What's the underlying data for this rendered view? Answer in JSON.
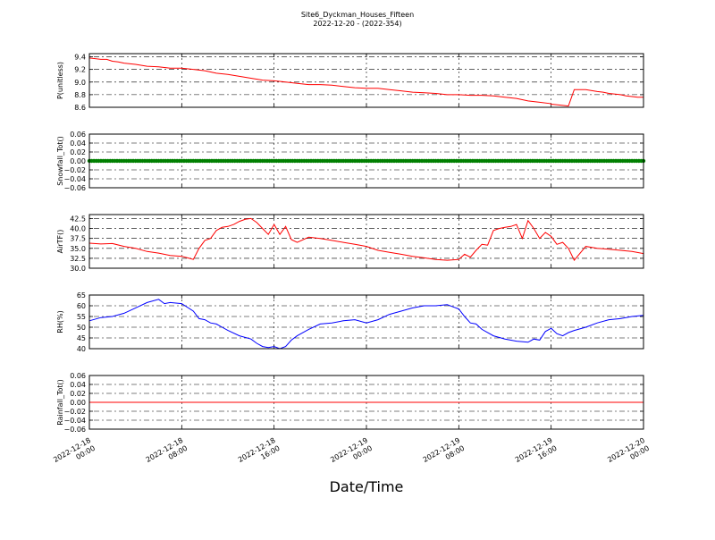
{
  "title": "Site6_Dyckman_Houses_Fifteen",
  "subtitle": "2022-12-20 - (2022-354)",
  "xlabel": "Date/Time",
  "x_ticks": [
    "2022-12-18 00:00",
    "2022-12-18 08:00",
    "2022-12-18 16:00",
    "2022-12-19 00:00",
    "2022-12-19 08:00",
    "2022-12-19 16:00",
    "2022-12-20 00:00"
  ],
  "x_tick_lines": [
    [
      "2022-12-18",
      "00:00"
    ],
    [
      "2022-12-18",
      "08:00"
    ],
    [
      "2022-12-18",
      "16:00"
    ],
    [
      "2022-12-19",
      "00:00"
    ],
    [
      "2022-12-19",
      "08:00"
    ],
    [
      "2022-12-19",
      "16:00"
    ],
    [
      "2022-12-20",
      "00:00"
    ]
  ],
  "colors": {
    "pressure": "#ff0000",
    "snowfall": "#007f00",
    "airtf": "#ff0000",
    "rh": "#0000ff",
    "rainfall": "#ff0000"
  },
  "chart_data": [
    {
      "type": "line",
      "ylabel": "P(unitless)",
      "yticks": [
        "9.4",
        "9.2",
        "9.0",
        "8.8",
        "8.6"
      ],
      "ylim": [
        8.6,
        9.45
      ],
      "xlim": [
        0,
        48
      ],
      "grid": true,
      "series": [
        {
          "color": "#ff0000",
          "x": [
            0,
            0.5,
            1,
            1.5,
            2,
            2.5,
            3,
            4,
            5,
            6,
            7,
            8,
            9,
            10,
            11,
            12,
            13,
            14,
            15,
            16,
            17,
            18,
            19,
            20,
            21,
            22,
            23,
            24,
            25,
            26,
            27,
            28,
            29,
            30,
            31,
            32,
            33,
            34,
            35,
            36,
            37,
            38,
            39,
            39.9,
            40,
            41,
            41.5,
            42,
            43,
            44,
            44.5,
            45,
            46,
            46.5,
            47,
            47.5,
            48
          ],
          "values": [
            9.38,
            9.37,
            9.36,
            9.36,
            9.33,
            9.32,
            9.3,
            9.28,
            9.25,
            9.24,
            9.22,
            9.22,
            9.2,
            9.18,
            9.14,
            9.12,
            9.09,
            9.06,
            9.03,
            9.02,
            9.0,
            8.98,
            8.96,
            8.96,
            8.95,
            8.93,
            8.91,
            8.9,
            8.9,
            8.88,
            8.86,
            8.84,
            8.83,
            8.82,
            8.8,
            8.8,
            8.79,
            8.79,
            8.78,
            8.76,
            8.74,
            8.7,
            8.68,
            8.66,
            8.65,
            8.63,
            8.62,
            8.88,
            8.88,
            8.85,
            8.84,
            8.82,
            8.8,
            8.78,
            8.77,
            8.76,
            8.76
          ]
        }
      ]
    },
    {
      "type": "scatter",
      "ylabel": "Snowfall_Tot()",
      "yticks": [
        "0.06",
        "0.04",
        "0.02",
        "0.00",
        "−0.02",
        "−0.04",
        "−0.06"
      ],
      "ylim": [
        -0.06,
        0.06
      ],
      "xlim": [
        0,
        48
      ],
      "grid": true,
      "series": [
        {
          "color": "#007f00",
          "x_range": [
            0,
            48
          ],
          "constant": 0.0
        }
      ]
    },
    {
      "type": "line",
      "ylabel": "AirTF()",
      "yticks": [
        "42.5",
        "40.0",
        "37.5",
        "35.0",
        "32.5",
        "30.0"
      ],
      "ylim": [
        30.0,
        43.5
      ],
      "xlim": [
        0,
        48
      ],
      "grid": true,
      "series": [
        {
          "color": "#ff0000",
          "x": [
            0,
            1,
            2,
            3,
            4,
            5,
            6,
            7,
            8,
            8.5,
            9,
            9.5,
            10,
            10.5,
            11,
            11.5,
            12,
            12.5,
            13,
            13.5,
            14,
            14.5,
            15,
            15.5,
            16,
            16.5,
            17,
            17.5,
            18,
            19,
            20,
            21,
            22,
            23,
            24,
            25,
            26,
            27,
            28,
            29,
            30,
            31,
            32,
            32.5,
            33,
            33.5,
            34,
            34.5,
            35,
            35.5,
            36,
            36.5,
            37,
            37.5,
            38,
            38.5,
            39,
            39.5,
            40,
            40.5,
            41,
            41.5,
            42,
            43,
            44,
            45,
            46,
            47,
            48
          ],
          "values": [
            36.3,
            36.1,
            36.2,
            35.5,
            35.0,
            34.2,
            33.8,
            33.2,
            33.0,
            32.6,
            32.2,
            35.0,
            37.0,
            37.5,
            39.5,
            40.3,
            40.5,
            41.0,
            41.8,
            42.3,
            42.5,
            41.5,
            40.0,
            38.5,
            41.0,
            38.5,
            40.5,
            37.2,
            36.5,
            37.8,
            37.5,
            37.0,
            36.5,
            36.0,
            35.5,
            34.5,
            34.0,
            33.5,
            33.0,
            32.6,
            32.2,
            32.0,
            32.2,
            33.5,
            32.8,
            34.5,
            36.0,
            35.8,
            39.5,
            40.0,
            40.3,
            40.5,
            41.0,
            37.5,
            42.0,
            40.0,
            37.5,
            39.0,
            38.0,
            36.0,
            36.5,
            35.0,
            32.0,
            35.5,
            35.0,
            34.8,
            34.5,
            34.2,
            33.7
          ]
        }
      ]
    },
    {
      "type": "line",
      "ylabel": "RH(%)",
      "yticks": [
        "65",
        "60",
        "55",
        "50",
        "45",
        "40"
      ],
      "ylim": [
        40,
        65
      ],
      "xlim": [
        0,
        48
      ],
      "grid": true,
      "series": [
        {
          "color": "#0000ff",
          "x": [
            0,
            1,
            2,
            3,
            4,
            5,
            6,
            6.5,
            7,
            8,
            9,
            9.5,
            10,
            10.5,
            11,
            11.5,
            12,
            13,
            14,
            14.5,
            15,
            15.5,
            16,
            16.5,
            17,
            17.5,
            18,
            19,
            20,
            21,
            22,
            23,
            24,
            25,
            26,
            27,
            28,
            29,
            30,
            31,
            32,
            32.5,
            33,
            33.5,
            34,
            35,
            36,
            37,
            38,
            38.5,
            39,
            39.5,
            40,
            40.5,
            41,
            41.5,
            42,
            43,
            44,
            45,
            46,
            47,
            48
          ],
          "values": [
            53.0,
            54.5,
            55.0,
            56.5,
            59.0,
            61.5,
            63.0,
            61.0,
            61.5,
            61.0,
            57.5,
            54.0,
            53.5,
            52.0,
            51.5,
            50.0,
            48.5,
            46.0,
            44.5,
            42.5,
            41.0,
            40.5,
            41.0,
            40.0,
            41.0,
            44.0,
            46.0,
            49.0,
            51.5,
            52.0,
            53.0,
            53.5,
            52.0,
            53.5,
            56.0,
            57.5,
            59.0,
            60.0,
            60.0,
            60.5,
            58.5,
            55.0,
            52.0,
            51.5,
            49.0,
            46.0,
            44.5,
            43.5,
            43.0,
            44.5,
            44.0,
            48.0,
            49.5,
            47.0,
            46.0,
            47.5,
            48.5,
            50.0,
            52.0,
            53.5,
            54.0,
            55.0,
            55.5
          ]
        }
      ]
    },
    {
      "type": "line",
      "ylabel": "Rainfall_Tot()",
      "yticks": [
        "0.06",
        "0.04",
        "0.02",
        "0.00",
        "−0.02",
        "−0.04",
        "−0.06"
      ],
      "ylim": [
        -0.06,
        0.06
      ],
      "xlim": [
        0,
        48
      ],
      "grid": true,
      "series": [
        {
          "color": "#ff0000",
          "x": [
            0,
            48
          ],
          "values": [
            0.0,
            0.0
          ]
        }
      ]
    }
  ]
}
